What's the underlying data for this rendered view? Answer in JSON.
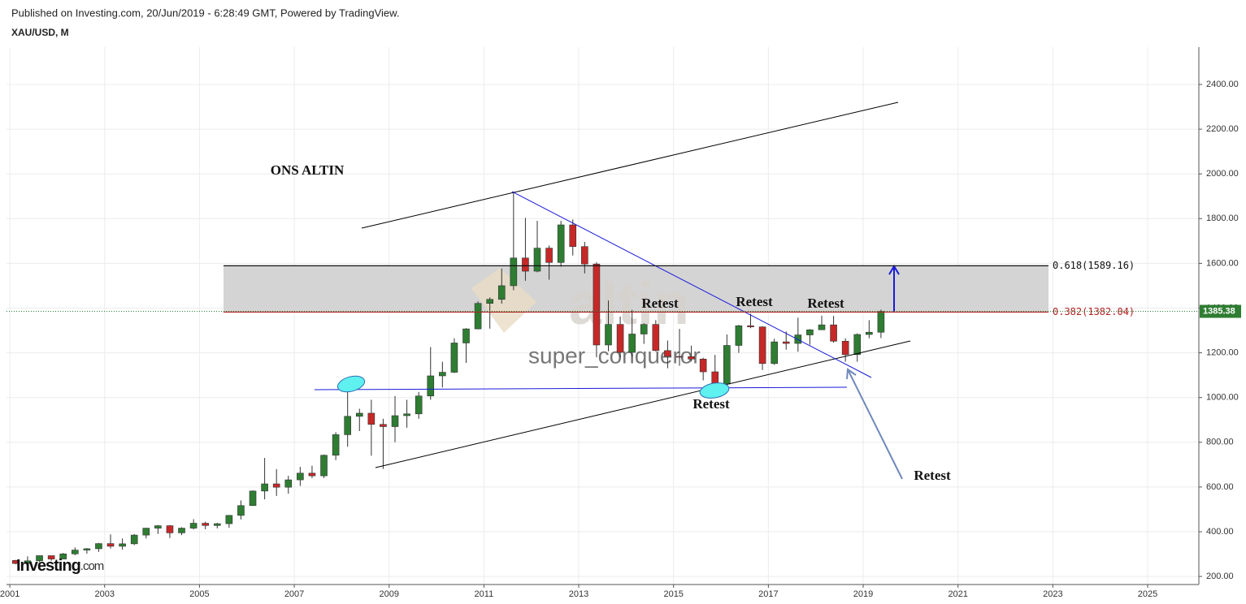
{
  "chart_data": {
    "type": "candlestick",
    "header": "Published on Investing.com, 20/Jun/2019 - 6:28:49 GMT, Powered by TradingView.",
    "title": "XAU/USD, M",
    "annotation_title": "ONS ALTIN",
    "annotations": [
      "Retest",
      "Retest",
      "Retest",
      "Retest",
      "Retest"
    ],
    "watermark": "altin",
    "watermark_user": "super_conqueror",
    "logo": [
      "Investing",
      ".com"
    ],
    "up_color": "#2e7d32",
    "down_color": "#c62828",
    "grid": true,
    "xlim": [
      2000.93,
      2026.08
    ],
    "xticks": [
      2001,
      2003,
      2005,
      2007,
      2009,
      2011,
      2013,
      2015,
      2017,
      2019,
      2021,
      2023,
      2025
    ],
    "ylim": [
      164,
      2567
    ],
    "yticks": [
      {
        "value": 200,
        "label": "200.00"
      },
      {
        "value": 400,
        "label": "400.00"
      },
      {
        "value": 600,
        "label": "600.00"
      },
      {
        "value": 800,
        "label": "800.00"
      },
      {
        "value": 1000,
        "label": "1000.00"
      },
      {
        "value": 1200,
        "label": "1200.00"
      },
      {
        "value": 1400,
        "label": "1400.00"
      },
      {
        "value": 1600,
        "label": "1600.00"
      },
      {
        "value": 1800,
        "label": "1800.00"
      },
      {
        "value": 2000,
        "label": "2000.00"
      },
      {
        "value": 2200,
        "label": "2200.00"
      },
      {
        "value": 2400,
        "label": "2400.00"
      }
    ],
    "fib_levels": [
      {
        "value": 1589.16,
        "label": "0.618(1589.16)"
      },
      {
        "value": 1382.04,
        "label": "0.382(1382.04)"
      }
    ],
    "last_price": 1385.38,
    "x": [
      2001,
      2001.25,
      2001.5,
      2001.75,
      2002,
      2002.25,
      2002.5,
      2002.75,
      2003,
      2003.25,
      2003.5,
      2003.75,
      2004,
      2004.25,
      2004.5,
      2004.75,
      2005,
      2005.25,
      2005.5,
      2005.75,
      2006,
      2006.25,
      2006.5,
      2006.75,
      2007,
      2007.25,
      2007.5,
      2007.75,
      2008,
      2008.25,
      2008.5,
      2008.75,
      2009,
      2009.25,
      2009.5,
      2009.75,
      2010,
      2010.25,
      2010.5,
      2010.75,
      2011,
      2011.25,
      2011.5,
      2011.75,
      2012,
      2012.25,
      2012.5,
      2012.75,
      2013,
      2013.25,
      2013.5,
      2013.75,
      2014,
      2014.25,
      2014.5,
      2014.75,
      2015,
      2015.25,
      2015.5,
      2015.75,
      2016,
      2016.25,
      2016.5,
      2016.75,
      2017,
      2017.25,
      2017.5,
      2017.75,
      2018,
      2018.25,
      2018.5,
      2018.75,
      2019,
      2019.25
    ],
    "open": [
      272,
      258,
      270,
      293,
      278,
      301,
      318,
      324,
      347,
      335,
      346,
      385,
      416,
      427,
      395,
      416,
      438,
      428,
      436,
      473,
      517,
      582,
      614,
      599,
      632,
      662,
      650,
      742,
      834,
      916,
      930,
      880,
      870,
      919,
      927,
      1007,
      1097,
      1113,
      1244,
      1307,
      1421,
      1439,
      1500,
      1624,
      1565,
      1668,
      1604,
      1772,
      1675,
      1597,
      1235,
      1327,
      1202,
      1284,
      1327,
      1210,
      1184,
      1183,
      1172,
      1115,
      1061,
      1233,
      1321,
      1316,
      1152,
      1249,
      1242,
      1280,
      1303,
      1325,
      1252,
      1192,
      1282,
      1292
    ],
    "high": [
      274,
      290,
      293,
      293,
      305,
      330,
      327,
      350,
      388,
      370,
      390,
      417,
      430,
      430,
      420,
      456,
      445,
      440,
      475,
      540,
      585,
      730,
      680,
      650,
      690,
      695,
      745,
      845,
      1033,
      950,
      990,
      905,
      1007,
      990,
      1025,
      1226,
      1160,
      1265,
      1310,
      1430,
      1448,
      1577,
      1921,
      1803,
      1790,
      1680,
      1790,
      1796,
      1696,
      1605,
      1434,
      1362,
      1392,
      1332,
      1346,
      1255,
      1307,
      1232,
      1178,
      1191,
      1282,
      1325,
      1375,
      1318,
      1263,
      1296,
      1357,
      1306,
      1366,
      1365,
      1265,
      1287,
      1346,
      1393
    ],
    "low": [
      255,
      255,
      265,
      270,
      277,
      295,
      302,
      310,
      325,
      320,
      340,
      370,
      390,
      372,
      385,
      410,
      411,
      415,
      418,
      455,
      515,
      545,
      560,
      570,
      605,
      640,
      640,
      720,
      780,
      850,
      740,
      681,
      800,
      865,
      905,
      990,
      1045,
      1110,
      1155,
      1305,
      1308,
      1420,
      1480,
      1522,
      1560,
      1527,
      1585,
      1635,
      1555,
      1180,
      1207,
      1180,
      1182,
      1240,
      1206,
      1131,
      1142,
      1162,
      1077,
      1046,
      1061,
      1200,
      1310,
      1123,
      1146,
      1214,
      1205,
      1236,
      1302,
      1245,
      1160,
      1160,
      1265,
      1266
    ],
    "close": [
      258,
      270,
      293,
      278,
      301,
      318,
      324,
      347,
      335,
      346,
      385,
      416,
      427,
      395,
      416,
      438,
      428,
      436,
      473,
      517,
      582,
      614,
      599,
      632,
      662,
      650,
      742,
      834,
      916,
      930,
      880,
      870,
      919,
      927,
      1007,
      1097,
      1113,
      1244,
      1307,
      1421,
      1439,
      1500,
      1624,
      1565,
      1668,
      1604,
      1772,
      1675,
      1597,
      1235,
      1327,
      1202,
      1284,
      1327,
      1210,
      1184,
      1183,
      1172,
      1115,
      1061,
      1233,
      1321,
      1316,
      1152,
      1249,
      1242,
      1280,
      1303,
      1325,
      1252,
      1192,
      1282,
      1292,
      1385
    ]
  }
}
